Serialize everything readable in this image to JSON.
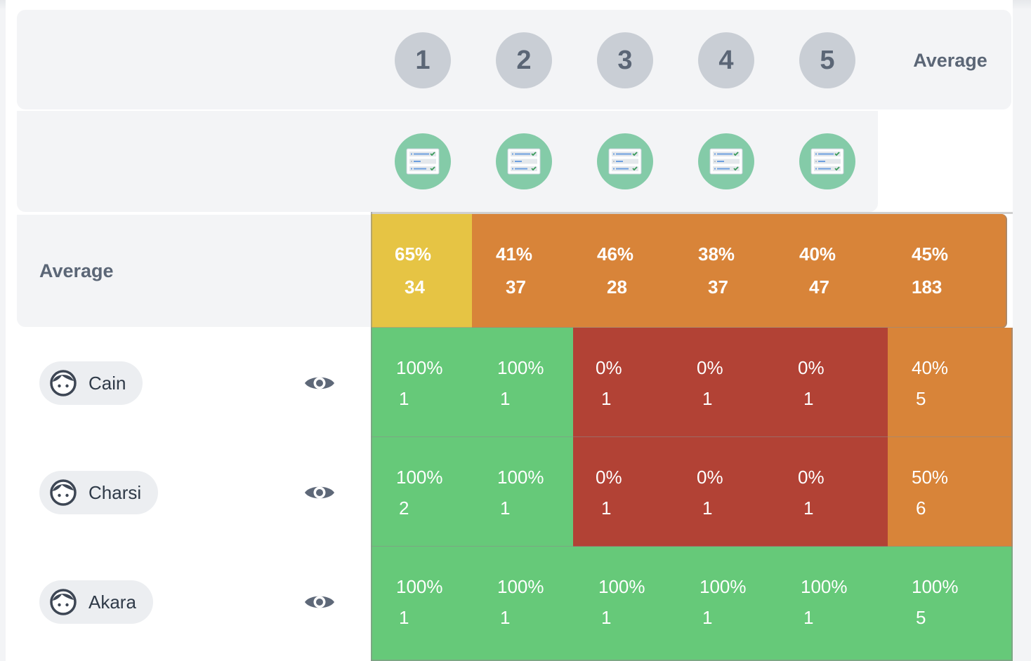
{
  "columns": {
    "numbers": [
      "1",
      "2",
      "3",
      "4",
      "5"
    ],
    "average_label": "Average",
    "task_icon": "checklist-icon"
  },
  "average_row": {
    "label": "Average",
    "cells": [
      {
        "pct": "65%",
        "count": "34",
        "color": "#e6c444"
      },
      {
        "pct": "41%",
        "count": "37",
        "color": "#d88439"
      },
      {
        "pct": "46%",
        "count": "28",
        "color": "#d88439"
      },
      {
        "pct": "38%",
        "count": "37",
        "color": "#d88439"
      },
      {
        "pct": "40%",
        "count": "47",
        "color": "#d88439"
      },
      {
        "pct": "45%",
        "count": "183",
        "color": "#d88439"
      }
    ]
  },
  "users": [
    {
      "name": "Cain",
      "cells": [
        {
          "pct": "100%",
          "count": "1",
          "color": "#66c979"
        },
        {
          "pct": "100%",
          "count": "1",
          "color": "#66c979"
        },
        {
          "pct": "0%",
          "count": "1",
          "color": "#b24235"
        },
        {
          "pct": "0%",
          "count": "1",
          "color": "#b24235"
        },
        {
          "pct": "0%",
          "count": "1",
          "color": "#b24235"
        },
        {
          "pct": "40%",
          "count": "5",
          "color": "#d88439"
        }
      ]
    },
    {
      "name": "Charsi",
      "cells": [
        {
          "pct": "100%",
          "count": "2",
          "color": "#66c979"
        },
        {
          "pct": "100%",
          "count": "1",
          "color": "#66c979"
        },
        {
          "pct": "0%",
          "count": "1",
          "color": "#b24235"
        },
        {
          "pct": "0%",
          "count": "1",
          "color": "#b24235"
        },
        {
          "pct": "0%",
          "count": "1",
          "color": "#b24235"
        },
        {
          "pct": "50%",
          "count": "6",
          "color": "#d88439"
        }
      ]
    },
    {
      "name": "Akara",
      "cells": [
        {
          "pct": "100%",
          "count": "1",
          "color": "#66c979"
        },
        {
          "pct": "100%",
          "count": "1",
          "color": "#66c979"
        },
        {
          "pct": "100%",
          "count": "1",
          "color": "#66c979"
        },
        {
          "pct": "100%",
          "count": "1",
          "color": "#66c979"
        },
        {
          "pct": "100%",
          "count": "1",
          "color": "#66c979"
        },
        {
          "pct": "100%",
          "count": "5",
          "color": "#66c979"
        }
      ]
    }
  ],
  "icons": {
    "user": "user-avatar-icon",
    "view": "eye-icon"
  }
}
